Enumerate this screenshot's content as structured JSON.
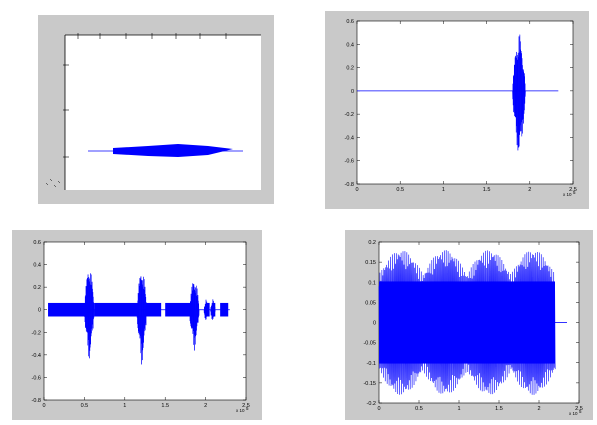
{
  "colors": {
    "figure_bg": "#c9c9c9",
    "axes_bg": "#ffffff",
    "signal": "#0000ff",
    "axis": "#000000"
  },
  "chart_data": [
    {
      "type": "line",
      "description_id": "top-left",
      "title": "",
      "xlabel": "",
      "ylabel": "",
      "axes_visible": false,
      "grid": false,
      "series": [
        {
          "values": []
        }
      ]
    },
    {
      "type": "line",
      "description_id": "top-right",
      "title": "",
      "xlabel": "",
      "ylabel": "",
      "xlim": [
        0,
        2.5
      ],
      "ylim": [
        -0.8,
        0.6
      ],
      "x_multiplier": "x 10^5",
      "x_ticks": [
        0,
        0.5,
        1,
        1.5,
        2,
        2.5
      ],
      "x_tick_labels": [
        "0",
        "0.5",
        "1",
        "1.5",
        "2",
        "2.5"
      ],
      "y_ticks": [
        -0.8,
        -0.6,
        -0.4,
        -0.2,
        0,
        0.2,
        0.4,
        0.6
      ],
      "y_tick_labels": [
        "-0.8",
        "-0.6",
        "-0.4",
        "-0.2",
        "0",
        "0.2",
        "0.4",
        "0.6"
      ],
      "grid": false,
      "signal_extent": [
        0,
        2.33
      ],
      "bursts": [
        {
          "x_start": 1.8,
          "x_end": 1.95,
          "amp_pos": 0.55,
          "amp_neg": -0.62
        }
      ]
    },
    {
      "type": "line",
      "description_id": "bottom-left",
      "title": "",
      "xlabel": "",
      "ylabel": "",
      "xlim": [
        0,
        2.5
      ],
      "ylim": [
        -0.8,
        0.6
      ],
      "x_multiplier": "x 10^5",
      "x_ticks": [
        0,
        0.5,
        1,
        1.5,
        2,
        2.5
      ],
      "x_tick_labels": [
        "0",
        "0.5",
        "1",
        "1.5",
        "2",
        "2.5"
      ],
      "y_ticks": [
        -0.8,
        -0.6,
        -0.4,
        -0.2,
        0,
        0.2,
        0.4,
        0.6
      ],
      "y_tick_labels": [
        "-0.8",
        "-0.6",
        "-0.4",
        "-0.2",
        "0",
        "0.2",
        "0.4",
        "0.6"
      ],
      "grid": false,
      "baseline_band": 0.06,
      "band_segments": [
        [
          0.05,
          0.55
        ],
        [
          0.62,
          1.18
        ],
        [
          1.26,
          1.45
        ],
        [
          1.5,
          1.85
        ],
        [
          2.0,
          2.05
        ],
        [
          2.08,
          2.12
        ],
        [
          2.18,
          2.28
        ]
      ],
      "bursts": [
        {
          "x_start": 0.5,
          "x_end": 0.62,
          "amp_pos": 0.45,
          "amp_neg": -0.48
        },
        {
          "x_start": 1.15,
          "x_end": 1.27,
          "amp_pos": 0.42,
          "amp_neg": -0.52
        },
        {
          "x_start": 1.8,
          "x_end": 1.92,
          "amp_pos": 0.32,
          "amp_neg": -0.38
        },
        {
          "x_start": 1.98,
          "x_end": 2.03,
          "amp_pos": 0.1,
          "amp_neg": -0.12
        },
        {
          "x_start": 2.06,
          "x_end": 2.12,
          "amp_pos": 0.1,
          "amp_neg": -0.12
        }
      ]
    },
    {
      "type": "line",
      "description_id": "bottom-right",
      "title": "",
      "xlabel": "",
      "ylabel": "",
      "xlim": [
        0,
        2.5
      ],
      "ylim": [
        -0.2,
        0.2
      ],
      "x_multiplier": "x 10^5",
      "x_ticks": [
        0,
        0.5,
        1,
        1.5,
        2,
        2.5
      ],
      "x_tick_labels": [
        "0",
        "0.5",
        "1",
        "1.5",
        "2",
        "2.5"
      ],
      "y_ticks": [
        -0.2,
        -0.15,
        -0.1,
        -0.05,
        0,
        0.05,
        0.1,
        0.15,
        0.2
      ],
      "y_tick_labels": [
        "-0.2",
        "-0.15",
        "-0.1",
        "-0.05",
        "0",
        "0.05",
        "0.1",
        "0.15",
        "0.2"
      ],
      "grid": false,
      "signal_extent": [
        0,
        2.2
      ],
      "core_amplitude": 0.12,
      "envelope_peaks": [
        0.18,
        0.18,
        0.18,
        0.18
      ],
      "envelope_period": 0.55
    }
  ]
}
